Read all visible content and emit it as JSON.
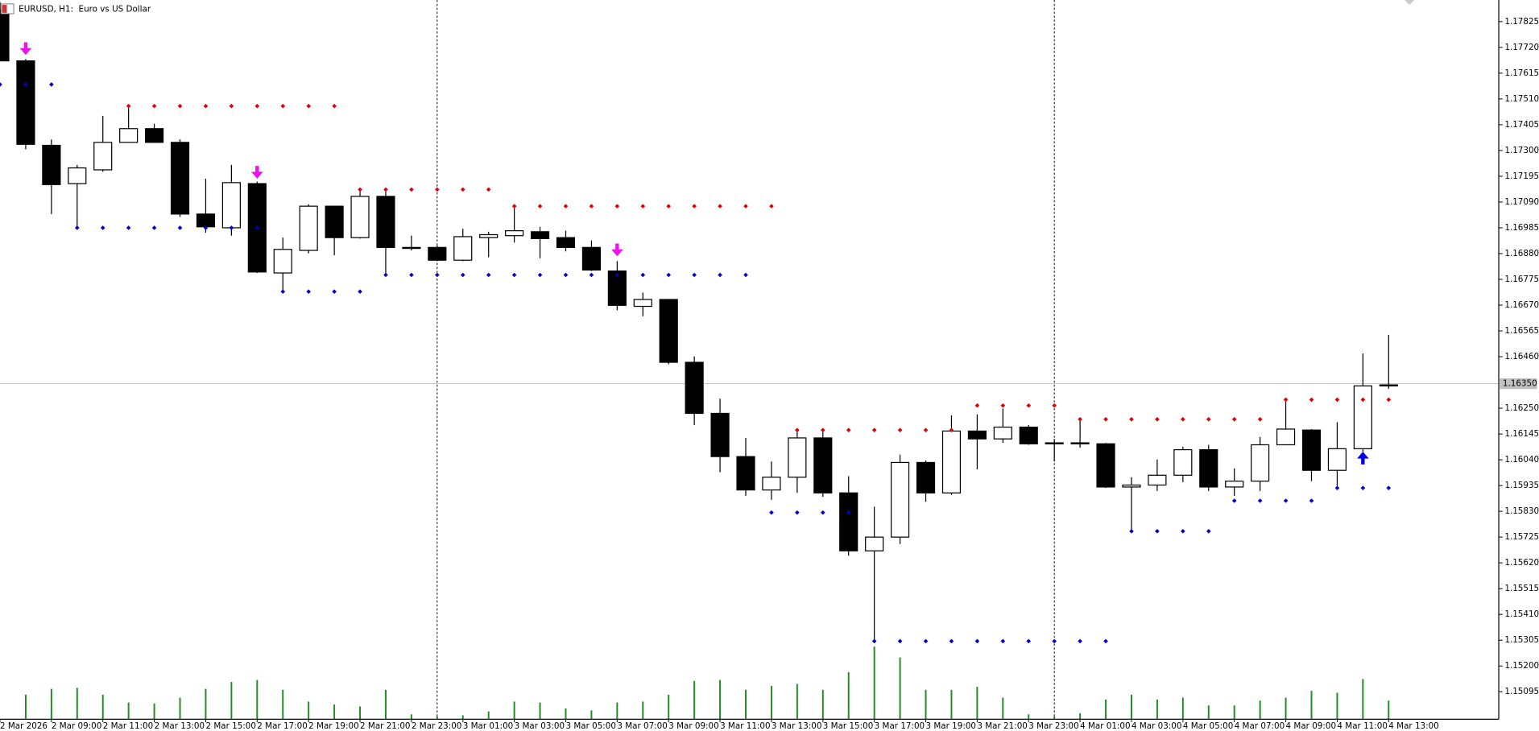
{
  "chart_data": {
    "type": "candlestick",
    "title": "EURUSD, H1:  Euro vs US Dollar",
    "categories": [
      "2 Mar 2026",
      null,
      "2 Mar 09:00",
      null,
      "2 Mar 11:00",
      null,
      "2 Mar 13:00",
      null,
      "2 Mar 15:00",
      null,
      "2 Mar 17:00",
      null,
      "2 Mar 19:00",
      null,
      "2 Mar 21:00",
      null,
      "2 Mar 23:00",
      null,
      "3 Mar 01:00",
      null,
      "3 Mar 03:00",
      null,
      "3 Mar 05:00",
      null,
      "3 Mar 07:00",
      null,
      "3 Mar 09:00",
      null,
      "3 Mar 11:00",
      null,
      "3 Mar 13:00",
      null,
      "3 Mar 15:00",
      null,
      "3 Mar 17:00",
      null,
      "3 Mar 19:00",
      null,
      "3 Mar 21:00",
      null,
      "3 Mar 23:00",
      null,
      "4 Mar 01:00",
      null,
      "4 Mar 03:00",
      null,
      "4 Mar 05:00",
      null,
      "4 Mar 07:00",
      null,
      "4 Mar 09:00",
      null,
      "4 Mar 11:00",
      null,
      "4 Mar 13:00"
    ],
    "open": [
      1.17873,
      1.17665,
      1.17321,
      1.17165,
      1.17221,
      1.17333,
      1.17389,
      1.17333,
      1.17041,
      1.16985,
      1.17165,
      1.16801,
      1.16893,
      1.17073,
      1.16945,
      1.17113,
      1.16905,
      1.16905,
      1.16853,
      1.16945,
      1.16953,
      1.16969,
      1.16945,
      1.16905,
      1.16809,
      1.16665,
      1.16693,
      1.16437,
      1.16229,
      1.16053,
      1.15917,
      1.15969,
      1.16129,
      1.15905,
      1.15669,
      1.15725,
      1.16029,
      1.15905,
      1.16157,
      1.16125,
      1.16173,
      1.16105,
      1.16109,
      1.16105,
      1.15929,
      1.15937,
      1.15977,
      1.16081,
      1.15929,
      1.15953,
      1.16101,
      1.16161,
      1.15997,
      1.16085,
      1.16341
    ],
    "high": [
      1.17905,
      1.17673,
      1.17345,
      1.17241,
      1.17441,
      1.17473,
      1.17409,
      1.17345,
      1.17185,
      1.17241,
      1.17173,
      1.16945,
      1.17081,
      1.17073,
      1.17141,
      1.17141,
      1.16953,
      1.16913,
      1.16981,
      1.16969,
      1.17081,
      1.16989,
      1.16973,
      1.16933,
      1.16849,
      1.16721,
      1.16693,
      1.16461,
      1.16289,
      1.16129,
      1.16033,
      1.16165,
      1.16153,
      1.15973,
      1.15849,
      1.16061,
      1.16037,
      1.16221,
      1.16225,
      1.16249,
      1.16181,
      1.16125,
      1.16201,
      1.16109,
      1.15969,
      1.16041,
      1.16093,
      1.16101,
      1.16005,
      1.16133,
      1.16285,
      1.16165,
      1.16193,
      1.16473,
      1.16549
    ],
    "low": [
      1.17665,
      1.17305,
      1.17041,
      1.16985,
      1.17213,
      1.17333,
      1.17333,
      1.17029,
      1.16965,
      1.16953,
      1.16801,
      1.16725,
      1.16881,
      1.16873,
      1.16941,
      1.16793,
      1.16893,
      1.16849,
      1.16849,
      1.16865,
      1.16925,
      1.16861,
      1.16889,
      1.16809,
      1.16649,
      1.16625,
      1.16429,
      1.16181,
      1.15989,
      1.15893,
      1.15877,
      1.15905,
      1.15889,
      1.15649,
      1.15301,
      1.15697,
      1.15869,
      1.15897,
      1.16001,
      1.16109,
      1.16101,
      1.16033,
      1.16089,
      1.15925,
      1.15749,
      1.15913,
      1.15949,
      1.15913,
      1.15893,
      1.15913,
      1.16101,
      1.15953,
      1.15933,
      1.16073,
      1.16329
    ],
    "close": [
      1.17665,
      1.17325,
      1.17161,
      1.17229,
      1.17333,
      1.17389,
      1.17333,
      1.17041,
      1.16989,
      1.17169,
      1.16805,
      1.16897,
      1.17073,
      1.16945,
      1.17113,
      1.16905,
      1.16901,
      1.16853,
      1.16949,
      1.16957,
      1.16973,
      1.16941,
      1.16905,
      1.16813,
      1.16669,
      1.16693,
      1.16437,
      1.16229,
      1.16053,
      1.15917,
      1.15969,
      1.16129,
      1.15905,
      1.15669,
      1.15725,
      1.16029,
      1.15905,
      1.16157,
      1.16125,
      1.16173,
      1.16105,
      1.16109,
      1.16105,
      1.15929,
      1.15937,
      1.15977,
      1.16081,
      1.15929,
      1.15953,
      1.16101,
      1.16165,
      1.15997,
      1.16085,
      1.16341,
      1.16345
    ],
    "up_color": "#ffffff",
    "down_color": "#000000",
    "upper_dots": {
      "color": "#e00000",
      "values": [
        null,
        null,
        null,
        null,
        null,
        1.17481,
        1.17481,
        1.17481,
        1.17481,
        1.17481,
        1.17481,
        1.17481,
        1.17481,
        1.17481,
        1.17141,
        1.17141,
        1.17141,
        1.17141,
        1.17141,
        1.17141,
        1.17073,
        1.17073,
        1.17073,
        1.17073,
        1.17073,
        1.17073,
        1.17073,
        1.17073,
        1.17073,
        1.17073,
        1.17073,
        1.16161,
        1.16161,
        1.16161,
        1.16161,
        1.16161,
        1.16161,
        1.16161,
        1.16261,
        1.16261,
        1.16261,
        1.16261,
        1.16205,
        1.16205,
        1.16205,
        1.16205,
        1.16205,
        1.16205,
        1.16205,
        1.16205,
        1.16285,
        1.16285,
        1.16285,
        1.16285,
        1.16285
      ]
    },
    "lower_dots": {
      "color": "#0000cc",
      "values": [
        1.17569,
        1.17569,
        1.17569,
        1.16985,
        1.16985,
        1.16985,
        1.16985,
        1.16985,
        1.16985,
        1.16985,
        1.16985,
        1.16725,
        1.16725,
        1.16725,
        1.16725,
        1.16793,
        1.16793,
        1.16793,
        1.16793,
        1.16793,
        1.16793,
        1.16793,
        1.16793,
        1.16793,
        1.16793,
        1.16793,
        1.16793,
        1.16793,
        1.16793,
        1.16793,
        1.15825,
        1.15825,
        1.15825,
        1.15825,
        1.15301,
        1.15301,
        1.15301,
        1.15301,
        1.15301,
        1.15301,
        1.15301,
        1.15301,
        1.15301,
        1.15301,
        1.15749,
        1.15749,
        1.15749,
        1.15749,
        1.15873,
        1.15873,
        1.15873,
        1.15873,
        1.15925,
        1.15925,
        1.15925
      ]
    },
    "sell_arrows": {
      "color": "#ee11ee",
      "values": [
        null,
        1.17713,
        null,
        null,
        null,
        null,
        null,
        null,
        null,
        null,
        1.17209,
        null,
        null,
        null,
        null,
        null,
        null,
        null,
        null,
        null,
        null,
        null,
        null,
        null,
        1.16893,
        null,
        null,
        null,
        null,
        null,
        null,
        null,
        null,
        null,
        null,
        null,
        null,
        null,
        null,
        null,
        null,
        null,
        null,
        null,
        null,
        null,
        null,
        null,
        null,
        null,
        null,
        null,
        null,
        null,
        null
      ]
    },
    "buy_arrows": {
      "color": "#0000dd",
      "values": [
        null,
        null,
        null,
        null,
        null,
        null,
        null,
        null,
        null,
        null,
        null,
        null,
        null,
        null,
        null,
        null,
        null,
        null,
        null,
        null,
        null,
        null,
        null,
        null,
        null,
        null,
        null,
        null,
        null,
        null,
        null,
        null,
        null,
        null,
        null,
        null,
        null,
        null,
        null,
        null,
        null,
        null,
        null,
        null,
        null,
        null,
        null,
        null,
        null,
        null,
        null,
        null,
        null,
        1.16049,
        null
      ]
    },
    "volume": {
      "color": "#1e8c1e",
      "ylim": [
        0,
        7330
      ],
      "values": [
        null,
        250,
        310,
        320,
        250,
        170,
        160,
        220,
        310,
        380,
        400,
        300,
        180,
        150,
        130,
        300,
        50,
        30,
        40,
        80,
        180,
        170,
        110,
        90,
        170,
        180,
        250,
        390,
        400,
        300,
        340,
        360,
        300,
        480,
        740,
        630,
        300,
        300,
        330,
        220,
        50,
        30,
        60,
        200,
        250,
        200,
        220,
        140,
        140,
        190,
        220,
        290,
        270,
        410,
        190
      ]
    },
    "current_price": {
      "value": 1.1635,
      "label": "1.16350"
    },
    "ylim": [
      1.14983,
      1.17913
    ],
    "yticks": [
      {
        "value": 1.17825,
        "label": "1.17825"
      },
      {
        "value": 1.1772,
        "label": "1.17720"
      },
      {
        "value": 1.17615,
        "label": "1.17615"
      },
      {
        "value": 1.1751,
        "label": "1.17510"
      },
      {
        "value": 1.17405,
        "label": "1.17405"
      },
      {
        "value": 1.173,
        "label": "1.17300"
      },
      {
        "value": 1.17195,
        "label": "1.17195"
      },
      {
        "value": 1.1709,
        "label": "1.17090"
      },
      {
        "value": 1.16985,
        "label": "1.16985"
      },
      {
        "value": 1.1688,
        "label": "1.16880"
      },
      {
        "value": 1.16775,
        "label": "1.16775"
      },
      {
        "value": 1.1667,
        "label": "1.16670"
      },
      {
        "value": 1.16565,
        "label": "1.16565"
      },
      {
        "value": 1.1646,
        "label": "1.16460"
      },
      {
        "value": 1.1625,
        "label": "1.16250"
      },
      {
        "value": 1.16145,
        "label": "1.16145"
      },
      {
        "value": 1.1604,
        "label": "1.16040"
      },
      {
        "value": 1.15935,
        "label": "1.15935"
      },
      {
        "value": 1.1583,
        "label": "1.15830"
      },
      {
        "value": 1.15725,
        "label": "1.15725"
      },
      {
        "value": 1.1562,
        "label": "1.15620"
      },
      {
        "value": 1.15515,
        "label": "1.15515"
      },
      {
        "value": 1.1541,
        "label": "1.15410"
      },
      {
        "value": 1.15305,
        "label": "1.15305"
      },
      {
        "value": 1.152,
        "label": "1.15200"
      },
      {
        "value": 1.15095,
        "label": "1.15095"
      }
    ],
    "period_separators": true,
    "grid": false
  }
}
